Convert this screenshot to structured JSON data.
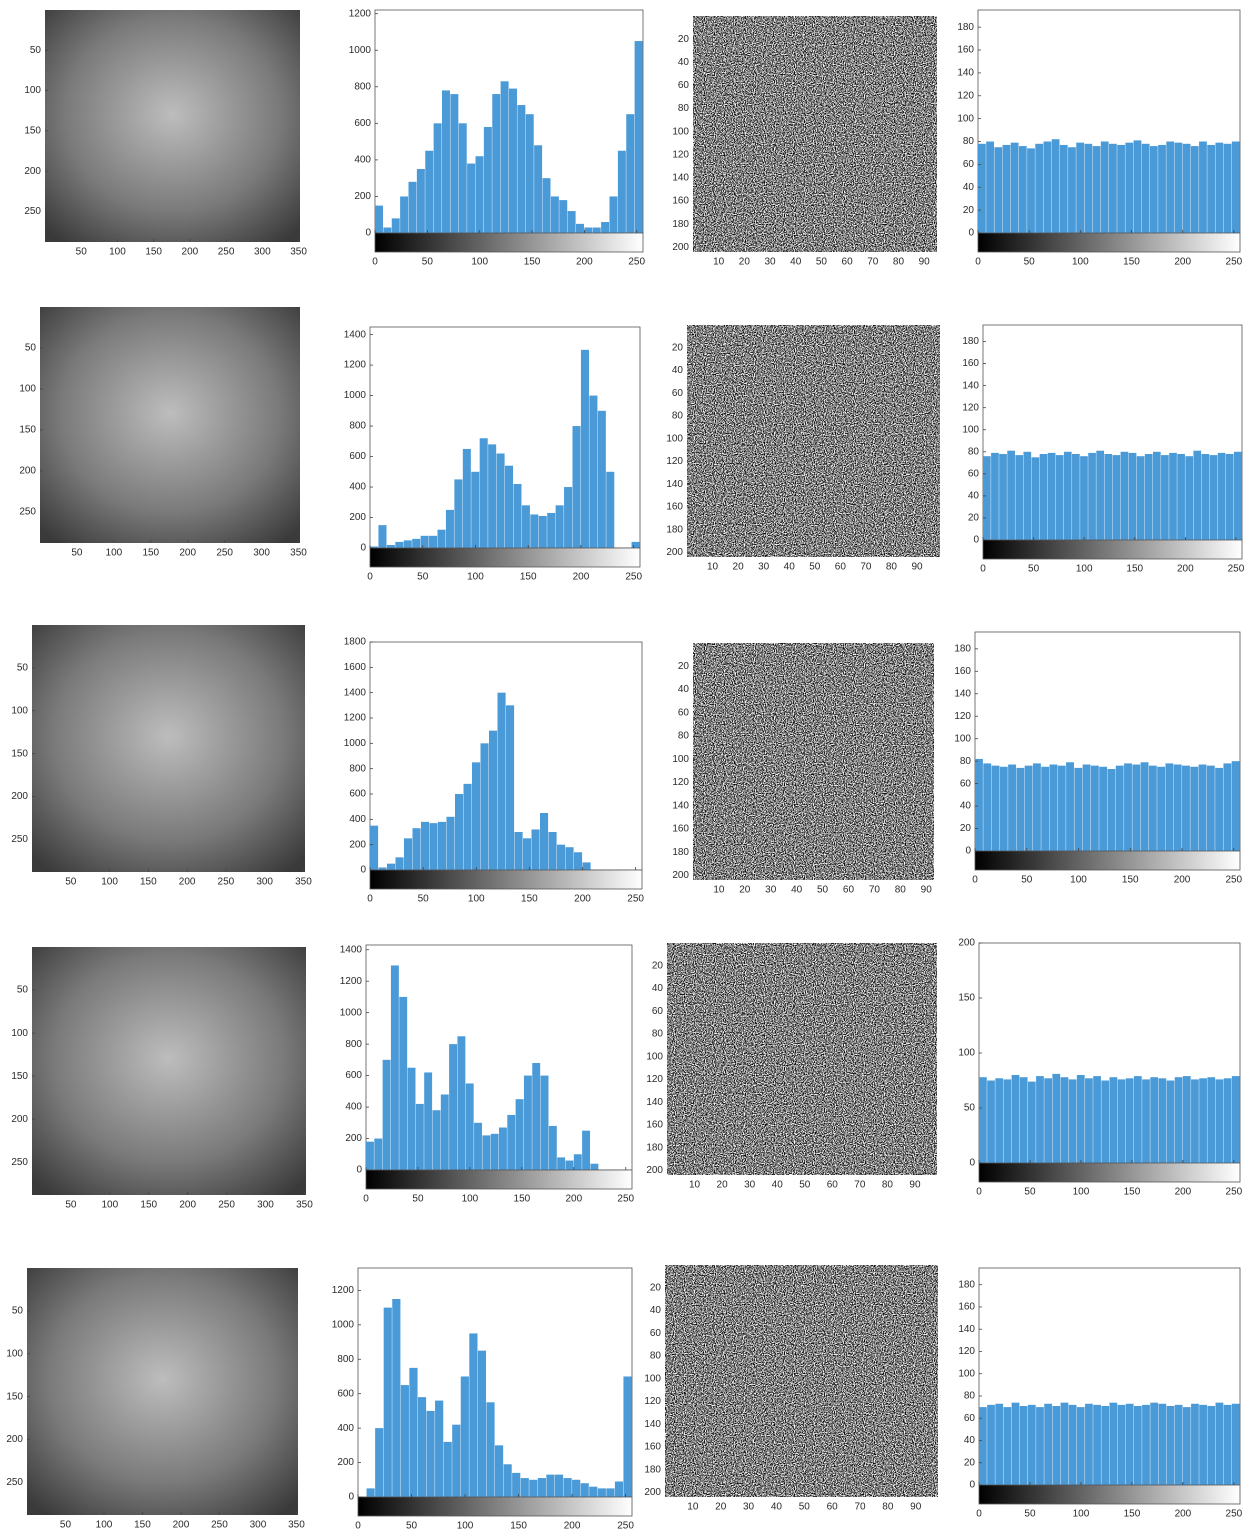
{
  "chart_data": [
    {
      "type": "image",
      "xlim": [
        0,
        352
      ],
      "ylim": [
        0,
        288
      ],
      "y_reversed": true,
      "xticks": [
        50,
        100,
        150,
        200,
        250,
        300,
        350
      ],
      "yticks": [
        50,
        100,
        150,
        200,
        250
      ]
    },
    {
      "type": "histogram",
      "bins": [
        0,
        8,
        16,
        24,
        32,
        40,
        48,
        56,
        64,
        72,
        80,
        88,
        96,
        104,
        112,
        120,
        128,
        136,
        144,
        152,
        160,
        168,
        176,
        184,
        192,
        200,
        208,
        216,
        224,
        232,
        240,
        248,
        256
      ],
      "values": [
        150,
        30,
        80,
        200,
        280,
        350,
        450,
        600,
        780,
        760,
        600,
        380,
        420,
        580,
        760,
        830,
        790,
        700,
        650,
        480,
        300,
        200,
        180,
        120,
        50,
        30,
        30,
        60,
        200,
        450,
        650,
        1050
      ],
      "color": "#4a9ad8",
      "xlim": [
        0,
        256
      ],
      "ylim": [
        0,
        1220
      ],
      "xticks": [
        0,
        50,
        100,
        150,
        200,
        250
      ],
      "yticks": [
        0,
        200,
        400,
        600,
        800,
        1000,
        1200
      ]
    },
    {
      "type": "image",
      "xlim": [
        0,
        95
      ],
      "ylim": [
        0,
        204
      ],
      "y_reversed": true,
      "xticks": [
        10,
        20,
        30,
        40,
        50,
        60,
        70,
        80,
        90
      ],
      "yticks": [
        20,
        40,
        60,
        80,
        100,
        120,
        140,
        160,
        180,
        200
      ],
      "noise": true
    },
    {
      "type": "histogram",
      "bins": [
        0,
        8,
        16,
        24,
        32,
        40,
        48,
        56,
        64,
        72,
        80,
        88,
        96,
        104,
        112,
        120,
        128,
        136,
        144,
        152,
        160,
        168,
        176,
        184,
        192,
        200,
        208,
        216,
        224,
        232,
        240,
        248,
        256
      ],
      "values": [
        78,
        80,
        75,
        77,
        79,
        76,
        74,
        78,
        80,
        82,
        77,
        75,
        79,
        78,
        76,
        80,
        78,
        77,
        79,
        81,
        78,
        76,
        77,
        80,
        79,
        78,
        76,
        80,
        77,
        79,
        78,
        80
      ],
      "color": "#4a9ad8",
      "xlim": [
        0,
        256
      ],
      "ylim": [
        0,
        195
      ],
      "xticks": [
        0,
        50,
        100,
        150,
        200,
        250
      ],
      "yticks": [
        0,
        20,
        40,
        60,
        80,
        100,
        120,
        140,
        160,
        180
      ]
    },
    {
      "type": "image",
      "xlim": [
        0,
        352
      ],
      "ylim": [
        0,
        288
      ],
      "y_reversed": true,
      "xticks": [
        50,
        100,
        150,
        200,
        250,
        300,
        350
      ],
      "yticks": [
        50,
        100,
        150,
        200,
        250
      ]
    },
    {
      "type": "histogram",
      "bins": [
        0,
        8,
        16,
        24,
        32,
        40,
        48,
        56,
        64,
        72,
        80,
        88,
        96,
        104,
        112,
        120,
        128,
        136,
        144,
        152,
        160,
        168,
        176,
        184,
        192,
        200,
        208,
        216,
        224,
        232,
        240,
        248,
        256
      ],
      "values": [
        10,
        150,
        20,
        40,
        50,
        60,
        80,
        80,
        120,
        250,
        450,
        650,
        500,
        720,
        680,
        620,
        540,
        420,
        280,
        220,
        210,
        230,
        280,
        400,
        800,
        1300,
        1000,
        900,
        500,
        0,
        0,
        40
      ],
      "color": "#4a9ad8",
      "xlim": [
        0,
        256
      ],
      "ylim": [
        0,
        1450
      ],
      "xticks": [
        0,
        50,
        100,
        150,
        200,
        250
      ],
      "yticks": [
        0,
        200,
        400,
        600,
        800,
        1000,
        1200,
        1400
      ]
    },
    {
      "type": "image",
      "xlim": [
        0,
        99
      ],
      "ylim": [
        0,
        204
      ],
      "y_reversed": true,
      "xticks": [
        10,
        20,
        30,
        40,
        50,
        60,
        70,
        80,
        90
      ],
      "yticks": [
        20,
        40,
        60,
        80,
        100,
        120,
        140,
        160,
        180,
        200
      ],
      "noise": true
    },
    {
      "type": "histogram",
      "bins": [
        0,
        8,
        16,
        24,
        32,
        40,
        48,
        56,
        64,
        72,
        80,
        88,
        96,
        104,
        112,
        120,
        128,
        136,
        144,
        152,
        160,
        168,
        176,
        184,
        192,
        200,
        208,
        216,
        224,
        232,
        240,
        248,
        256
      ],
      "values": [
        76,
        79,
        78,
        81,
        77,
        80,
        75,
        78,
        79,
        77,
        80,
        78,
        76,
        79,
        81,
        78,
        77,
        80,
        79,
        76,
        78,
        80,
        77,
        79,
        78,
        76,
        81,
        78,
        77,
        79,
        78,
        80
      ],
      "color": "#4a9ad8",
      "xlim": [
        0,
        256
      ],
      "ylim": [
        0,
        195
      ],
      "xticks": [
        0,
        50,
        100,
        150,
        200,
        250
      ],
      "yticks": [
        0,
        20,
        40,
        60,
        80,
        100,
        120,
        140,
        160,
        180
      ]
    },
    {
      "type": "image",
      "xlim": [
        0,
        352
      ],
      "ylim": [
        0,
        288
      ],
      "y_reversed": true,
      "xticks": [
        50,
        100,
        150,
        200,
        250,
        300,
        350
      ],
      "yticks": [
        50,
        100,
        150,
        200,
        250
      ]
    },
    {
      "type": "histogram",
      "bins": [
        0,
        8,
        16,
        24,
        32,
        40,
        48,
        56,
        64,
        72,
        80,
        88,
        96,
        104,
        112,
        120,
        128,
        136,
        144,
        152,
        160,
        168,
        176,
        184,
        192,
        200,
        208,
        216,
        224,
        232,
        240,
        248,
        256
      ],
      "values": [
        350,
        20,
        50,
        100,
        250,
        330,
        380,
        370,
        380,
        420,
        600,
        680,
        850,
        1000,
        1100,
        1400,
        1300,
        300,
        250,
        320,
        450,
        300,
        200,
        180,
        140,
        60,
        0,
        0,
        0,
        0,
        0,
        0
      ],
      "color": "#4a9ad8",
      "xlim": [
        0,
        256
      ],
      "ylim": [
        0,
        1800
      ],
      "xticks": [
        0,
        50,
        100,
        150,
        200,
        250
      ],
      "yticks": [
        0,
        200,
        400,
        600,
        800,
        1000,
        1200,
        1400,
        1600,
        1800
      ]
    },
    {
      "type": "image",
      "xlim": [
        0,
        93
      ],
      "ylim": [
        0,
        204
      ],
      "y_reversed": true,
      "xticks": [
        10,
        20,
        30,
        40,
        50,
        60,
        70,
        80,
        90
      ],
      "yticks": [
        20,
        40,
        60,
        80,
        100,
        120,
        140,
        160,
        180,
        200
      ],
      "noise": true
    },
    {
      "type": "histogram",
      "bins": [
        0,
        8,
        16,
        24,
        32,
        40,
        48,
        56,
        64,
        72,
        80,
        88,
        96,
        104,
        112,
        120,
        128,
        136,
        144,
        152,
        160,
        168,
        176,
        184,
        192,
        200,
        208,
        216,
        224,
        232,
        240,
        248,
        256
      ],
      "values": [
        82,
        78,
        76,
        75,
        77,
        74,
        76,
        78,
        75,
        77,
        76,
        79,
        74,
        77,
        76,
        75,
        73,
        76,
        78,
        77,
        79,
        76,
        75,
        78,
        77,
        76,
        75,
        77,
        76,
        74,
        78,
        80
      ],
      "color": "#4a9ad8",
      "xlim": [
        0,
        256
      ],
      "ylim": [
        0,
        195
      ],
      "xticks": [
        0,
        50,
        100,
        150,
        200,
        250
      ],
      "yticks": [
        0,
        20,
        40,
        60,
        80,
        100,
        120,
        140,
        160,
        180
      ]
    },
    {
      "type": "image",
      "xlim": [
        0,
        352
      ],
      "ylim": [
        0,
        288
      ],
      "y_reversed": true,
      "xticks": [
        50,
        100,
        150,
        200,
        250,
        300,
        350
      ],
      "yticks": [
        50,
        100,
        150,
        200,
        250
      ]
    },
    {
      "type": "histogram",
      "bins": [
        0,
        8,
        16,
        24,
        32,
        40,
        48,
        56,
        64,
        72,
        80,
        88,
        96,
        104,
        112,
        120,
        128,
        136,
        144,
        152,
        160,
        168,
        176,
        184,
        192,
        200,
        208,
        216,
        224,
        232,
        240,
        248,
        256
      ],
      "values": [
        180,
        200,
        700,
        1300,
        1100,
        650,
        420,
        620,
        380,
        480,
        800,
        850,
        550,
        300,
        220,
        230,
        270,
        350,
        450,
        600,
        680,
        600,
        280,
        80,
        60,
        100,
        250,
        40,
        0,
        0,
        0,
        0
      ],
      "color": "#4a9ad8",
      "xlim": [
        0,
        256
      ],
      "ylim": [
        0,
        1430
      ],
      "xticks": [
        0,
        50,
        100,
        150,
        200,
        250
      ],
      "yticks": [
        0,
        200,
        400,
        600,
        800,
        1000,
        1200,
        1400
      ]
    },
    {
      "type": "image",
      "xlim": [
        0,
        98
      ],
      "ylim": [
        0,
        204
      ],
      "y_reversed": true,
      "xticks": [
        10,
        20,
        30,
        40,
        50,
        60,
        70,
        80,
        90
      ],
      "yticks": [
        20,
        40,
        60,
        80,
        100,
        120,
        140,
        160,
        180,
        200
      ],
      "noise": true
    },
    {
      "type": "histogram",
      "bins": [
        0,
        8,
        16,
        24,
        32,
        40,
        48,
        56,
        64,
        72,
        80,
        88,
        96,
        104,
        112,
        120,
        128,
        136,
        144,
        152,
        160,
        168,
        176,
        184,
        192,
        200,
        208,
        216,
        224,
        232,
        240,
        248,
        256
      ],
      "values": [
        78,
        75,
        77,
        76,
        80,
        78,
        74,
        79,
        77,
        81,
        78,
        76,
        80,
        77,
        79,
        75,
        78,
        76,
        77,
        79,
        76,
        78,
        77,
        75,
        78,
        79,
        76,
        77,
        78,
        76,
        77,
        79
      ],
      "color": "#4a9ad8",
      "xlim": [
        0,
        256
      ],
      "ylim": [
        0,
        200
      ],
      "xticks": [
        0,
        50,
        100,
        150,
        200,
        250
      ],
      "yticks": [
        0,
        50,
        100,
        150,
        200
      ]
    },
    {
      "type": "image",
      "xlim": [
        0,
        352
      ],
      "ylim": [
        0,
        288
      ],
      "y_reversed": true,
      "xticks": [
        50,
        100,
        150,
        200,
        250,
        300,
        350
      ],
      "yticks": [
        50,
        100,
        150,
        200,
        250
      ]
    },
    {
      "type": "histogram",
      "bins": [
        0,
        8,
        16,
        24,
        32,
        40,
        48,
        56,
        64,
        72,
        80,
        88,
        96,
        104,
        112,
        120,
        128,
        136,
        144,
        152,
        160,
        168,
        176,
        184,
        192,
        200,
        208,
        216,
        224,
        232,
        240,
        248,
        256
      ],
      "values": [
        0,
        50,
        400,
        1100,
        1150,
        650,
        750,
        580,
        500,
        560,
        320,
        420,
        700,
        950,
        850,
        550,
        300,
        190,
        140,
        110,
        100,
        110,
        130,
        130,
        110,
        100,
        80,
        60,
        50,
        50,
        90,
        700
      ],
      "color": "#4a9ad8",
      "xlim": [
        0,
        256
      ],
      "ylim": [
        0,
        1330
      ],
      "xticks": [
        0,
        50,
        100,
        150,
        200,
        250
      ],
      "yticks": [
        0,
        200,
        400,
        600,
        800,
        1000,
        1200
      ]
    },
    {
      "type": "image",
      "xlim": [
        0,
        98
      ],
      "ylim": [
        0,
        204
      ],
      "y_reversed": true,
      "xticks": [
        10,
        20,
        30,
        40,
        50,
        60,
        70,
        80,
        90
      ],
      "yticks": [
        20,
        40,
        60,
        80,
        100,
        120,
        140,
        160,
        180,
        200
      ],
      "noise": true
    },
    {
      "type": "histogram",
      "bins": [
        0,
        8,
        16,
        24,
        32,
        40,
        48,
        56,
        64,
        72,
        80,
        88,
        96,
        104,
        112,
        120,
        128,
        136,
        144,
        152,
        160,
        168,
        176,
        184,
        192,
        200,
        208,
        216,
        224,
        232,
        240,
        248,
        256
      ],
      "values": [
        70,
        72,
        73,
        70,
        74,
        71,
        72,
        70,
        73,
        71,
        74,
        72,
        70,
        73,
        72,
        71,
        74,
        72,
        73,
        71,
        72,
        74,
        73,
        71,
        72,
        70,
        73,
        72,
        71,
        74,
        72,
        73
      ],
      "color": "#4a9ad8",
      "xlim": [
        0,
        256
      ],
      "ylim": [
        0,
        195
      ],
      "xticks": [
        0,
        50,
        100,
        150,
        200,
        250
      ],
      "yticks": [
        0,
        20,
        40,
        60,
        80,
        100,
        120,
        140,
        160,
        180
      ]
    }
  ]
}
